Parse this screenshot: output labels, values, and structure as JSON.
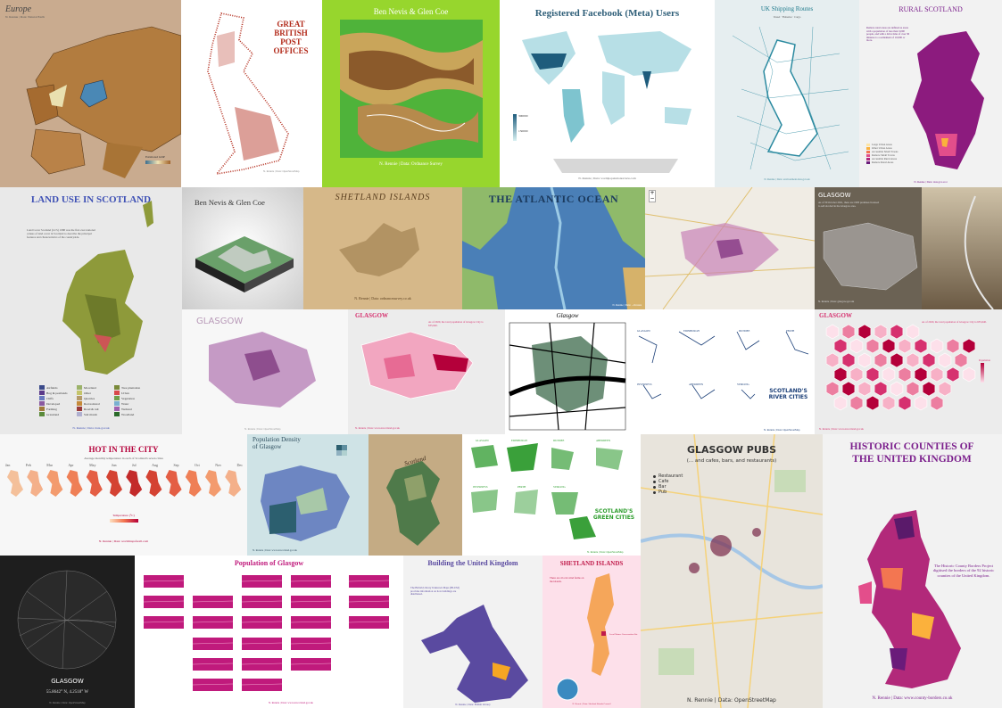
{
  "tiles": {
    "europe": {
      "title": "Europe",
      "credit": "N. Rennie | Data: Natural Earth",
      "legend": "Estimated GDP"
    },
    "post": {
      "title": "GREAT BRITISH POST OFFICES",
      "credit": "N. Rennie | Data: OpenStreetMap"
    },
    "bennevis": {
      "title": "Ben Nevis & Glen Coe",
      "credit": "N. Rennie | Data: Ordnance Survey"
    },
    "facebook": {
      "title": "Registered Facebook (Meta) Users",
      "credit": "N. Rennie | Data: worldpopulationreview.com",
      "legend_hi": "300000",
      "legend_lo": "150000"
    },
    "shipping": {
      "title": "UK Shipping Routes",
      "legend": "Vessel  · Fisheries · Cargo",
      "credit": "N. Rennie | Data: environment.data.gov.uk"
    },
    "rural": {
      "title": "RURAL SCOTLAND",
      "text": "Remote rural areas are defined as areas with a population of less than 3,000 people, and with a drive time of over 30 minutes to a settlement of 10,000 or more.",
      "legend": [
        "Large Urban Areas",
        "Other Urban Areas",
        "Accessible Small Towns",
        "Remote Small Towns",
        "Accessible Rural Areas",
        "Remote Rural Areas"
      ],
      "credit": "N. Rennie | Data: data.gov.scot"
    },
    "landuse": {
      "title": "LAND USE IN SCOTLAND",
      "text": "Land Cover Scotland (LCS) 1988 was the first ever national census of land cover in Scotland to describe the principal features and characteristics of the countryside.",
      "legend": [
        "Airfields",
        "Moorland",
        "Tree plantation",
        "Bog & peatlands",
        "Other",
        "Urban",
        "Cliffs",
        "Quarries",
        "Vegetation",
        "Developed",
        "Recreational",
        "Water",
        "Farming",
        "Road & rail",
        "Wetland",
        "Grassland",
        "Salt marsh",
        "Woodland"
      ],
      "credit": "N. Rennie | Data: data.gov.uk"
    },
    "bennevis3d": {
      "title": "Ben Nevis & Glen Coe"
    },
    "shetland1": {
      "title": "SHETLAND ISLANDS",
      "credit": "N. Rennie | Data: ordnancesurvey.co.uk"
    },
    "atlantic": {
      "title": "THE ATLANTIC OCEAN",
      "credit": "N. Rennie | Data: ...Oceans"
    },
    "glasgow_photo": {
      "title": "GLASGOW",
      "text": "As of 30 October 2021, there are 1983 premises licensed to sell alcohol in the Glasgow area.",
      "credit": "N. Rennie | Data: glasgow.gov.uk"
    },
    "glasgow_light": {
      "title": "GLASGOW",
      "credit": "N. Rennie | Data: OpenStreetMap"
    },
    "glasgow_pink": {
      "title": "GLASGOW",
      "text": "As of 2020, the total population of Glasgow City is 635,640.",
      "credit": "N. Rennie | Data: www.nrscotland.gov.uk"
    },
    "glasgow_bw": {
      "title": "Glasgow"
    },
    "rivers": {
      "labels": [
        "GLASGOW",
        "EDINBURGH",
        "DUNDEE",
        "PERTH",
        "INVERNESS",
        "ABERDEEN",
        "STIRLING"
      ],
      "title": "SCOTLAND'S RIVER CITIES",
      "credit": "N. Rennie | Data: OpenStreetMap"
    },
    "glasgow_hex": {
      "title": "GLASGOW",
      "text": "As of 2020, the total population of Glasgow City is 635,640.",
      "legend": "Population",
      "credit": "N. Rennie | Data: www.nrscotland.gov.uk"
    },
    "hotcity": {
      "title": "HOT IN THE CITY",
      "subtitle": "Average monthly temperature in each of Scotland's seven cities",
      "months": [
        "Jan",
        "Feb",
        "Mar",
        "Apr",
        "May",
        "Jun",
        "Jul",
        "Aug",
        "Sep",
        "Oct",
        "Nov",
        "Dec"
      ],
      "legend": "Temperature (°C)",
      "credit": "N. Rennie | Data: worldmapsforall.com"
    },
    "popdensity": {
      "title": "Population Density of Glasgow",
      "credit": "N. Rennie | Data: www.nrscotland.gov.uk"
    },
    "scotland_relief": {
      "title": "Scotland"
    },
    "greencities": {
      "labels": [
        "GLASGOW",
        "EDINBURGH",
        "DUNDEE",
        "ABERDEEN",
        "INVERNESS",
        "PERTH",
        "STIRLING"
      ],
      "title": "SCOTLAND'S GREEN CITIES",
      "credit": "N. Rennie | Data: OpenStreetMap"
    },
    "pubs": {
      "title": "GLASGOW PUBS",
      "subtitle": "(... and cafes, bars, and restaurants)",
      "legend": [
        "Restaurant",
        "Cafe",
        "Bar",
        "Pub"
      ],
      "credit": "N. Rennie | Data: OpenStreetMap"
    },
    "counties": {
      "title": "HISTORIC COUNTIES OF THE UNITED KINGDOM",
      "text": "The Historic County Borders Project digitised the borders of the 92 historic counties of the United Kingdom.",
      "credit": "N. Rennie | Data: www.county-borders.co.uk"
    },
    "glasgow_dark": {
      "title": "GLASGOW",
      "coords": "55.8642° N, 4.2518° W",
      "credit": "N. Rennie | Data: OpenStreetMap"
    },
    "popglasgow": {
      "title": "Population of Glasgow",
      "credit": "N. Rennie | Data: www.nrscotland.gov.uk"
    },
    "buildinguk": {
      "title": "Building the United Kingdom",
      "text": "The British Library Unknown Maps (BLUM) provides information on how buildings are distributed.",
      "credit": "N. Rennie | Data: British Library"
    },
    "shetland2": {
      "title": "SHETLAND ISLANDS",
      "text": "There are 4 local wind farms on the islands.",
      "legend": "Local Nature Conservation Site",
      "credit": "N. Rennie | Data: Shetland Islands Council"
    }
  },
  "colors": {
    "lime": "#97d62d",
    "pink": "#d6316f",
    "purple": "#7b1f8c",
    "blue": "#1f5c8c",
    "navy": "#2a3b7a",
    "sepia": "#b68a5a",
    "magenta": "#c01a7c",
    "green": "#2e9e2e"
  }
}
